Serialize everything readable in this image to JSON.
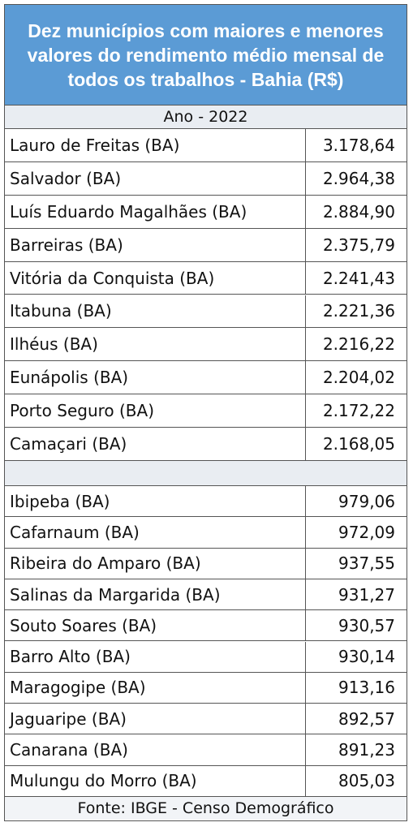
{
  "header": {
    "title": "Dez municípios com maiores e menores valores do rendimento médio mensal de todos os trabalhos - Bahia (R$)",
    "subtitle": "Ano - 2022"
  },
  "table": {
    "top_rows": [
      [
        "Lauro de Freitas (BA)",
        "3.178,64"
      ],
      [
        "Salvador (BA)",
        "2.964,38"
      ],
      [
        "Luís Eduardo Magalhães (BA)",
        "2.884,90"
      ],
      [
        "Barreiras (BA)",
        "2.375,79"
      ],
      [
        "Vitória da Conquista (BA)",
        "2.241,43"
      ],
      [
        "Itabuna (BA)",
        "2.221,36"
      ],
      [
        "Ilhéus (BA)",
        "2.216,22"
      ],
      [
        "Eunápolis (BA)",
        "2.204,02"
      ],
      [
        "Porto Seguro (BA)",
        "2.172,22"
      ],
      [
        "Camaçari (BA)",
        "2.168,05"
      ]
    ],
    "bottom_rows": [
      [
        "Ibipeba (BA)",
        "979,06"
      ],
      [
        "Cafarnaum (BA)",
        "972,09"
      ],
      [
        "Ribeira do Amparo (BA)",
        "937,55"
      ],
      [
        "Salinas da Margarida (BA)",
        "931,27"
      ],
      [
        "Souto Soares (BA)",
        "930,57"
      ],
      [
        "Barro Alto (BA)",
        "930,14"
      ],
      [
        "Maragogipe (BA)",
        "913,16"
      ],
      [
        "Jaguaripe (BA)",
        "892,57"
      ],
      [
        "Canarana (BA)",
        "891,23"
      ],
      [
        "Mulungu do Morro (BA)",
        "805,03"
      ]
    ]
  },
  "footer": {
    "source": "Fonte: IBGE - Censo Demográfico"
  }
}
